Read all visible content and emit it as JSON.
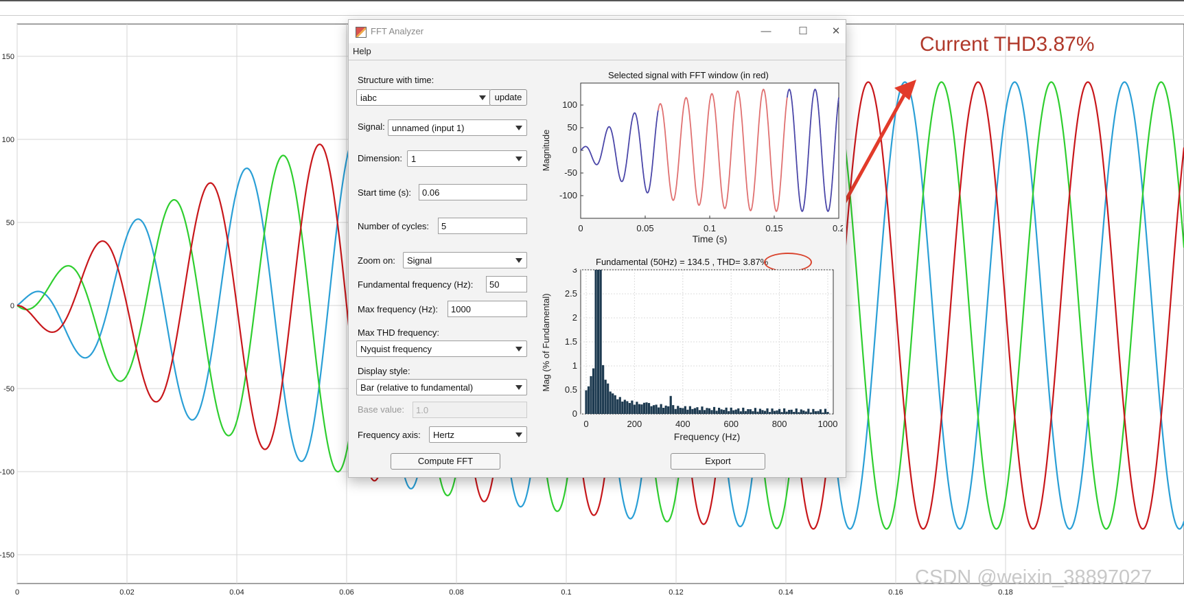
{
  "background_plot": {
    "y_ticks": [
      "150",
      "100",
      "50",
      "0",
      "-50",
      "-100",
      "-150"
    ],
    "x_ticks": [
      "0",
      "0.02",
      "0.04",
      "0.06",
      "0.08",
      "0.1",
      "0.12",
      "0.14",
      "0.16",
      "0.18"
    ],
    "series_colors": {
      "phase_a": "#c8171b",
      "phase_b": "#2a9fd6",
      "phase_c": "#2fce2f"
    }
  },
  "annotation": {
    "text": "Current THD3.87%",
    "color": "#c0392b"
  },
  "watermark": "CSDN @weixin_38897027",
  "window": {
    "title": "FFT Analyzer",
    "controls": {
      "minimize": "—",
      "maximize": "☐",
      "close": "✕"
    },
    "menu": {
      "help": "Help"
    },
    "structure_label": "Structure with time:",
    "structure_value": "iabc",
    "update_label": "update",
    "signal_label": "Signal:",
    "signal_value": "unnamed (input 1)",
    "dimension_label": "Dimension:",
    "dimension_value": "1",
    "start_time_label": "Start time (s):",
    "start_time_value": "0.06",
    "cycles_label": "Number of cycles:",
    "cycles_value": "5",
    "zoom_label": "Zoom on:",
    "zoom_value": "Signal",
    "fund_freq_label": "Fundamental frequency (Hz):",
    "fund_freq_value": "50",
    "max_freq_label": "Max frequency (Hz):",
    "max_freq_value": "1000",
    "max_thd_label": "Max THD frequency:",
    "max_thd_value": "Nyquist frequency",
    "display_style_label": "Display style:",
    "display_style_value": "Bar (relative to fundamental)",
    "base_value_label": "Base value:",
    "base_value_value": "1.0",
    "freq_axis_label": "Frequency axis:",
    "freq_axis_value": "Hertz",
    "compute_label": "Compute FFT",
    "export_label": "Export",
    "signal_plot": {
      "title": "Selected signal with FFT window (in red)",
      "xlabel": "Time (s)",
      "ylabel": "Magnitude",
      "x_ticks": [
        "0",
        "0.05",
        "0.1",
        "0.15",
        "0.2"
      ],
      "y_ticks": [
        "100",
        "50",
        "0",
        "-50",
        "-100"
      ]
    },
    "fft_plot": {
      "title_prefix": "Fundamental (50Hz) = 134.5 , THD",
      "thd_value": "= 3.87%",
      "xlabel": "Frequency (Hz)",
      "ylabel": "Mag (% of Fundamental)",
      "x_ticks": [
        "0",
        "200",
        "400",
        "600",
        "800",
        "1000"
      ],
      "y_ticks": [
        "3",
        "2.5",
        "2",
        "1.5",
        "1",
        "0.5",
        "0"
      ]
    }
  }
}
